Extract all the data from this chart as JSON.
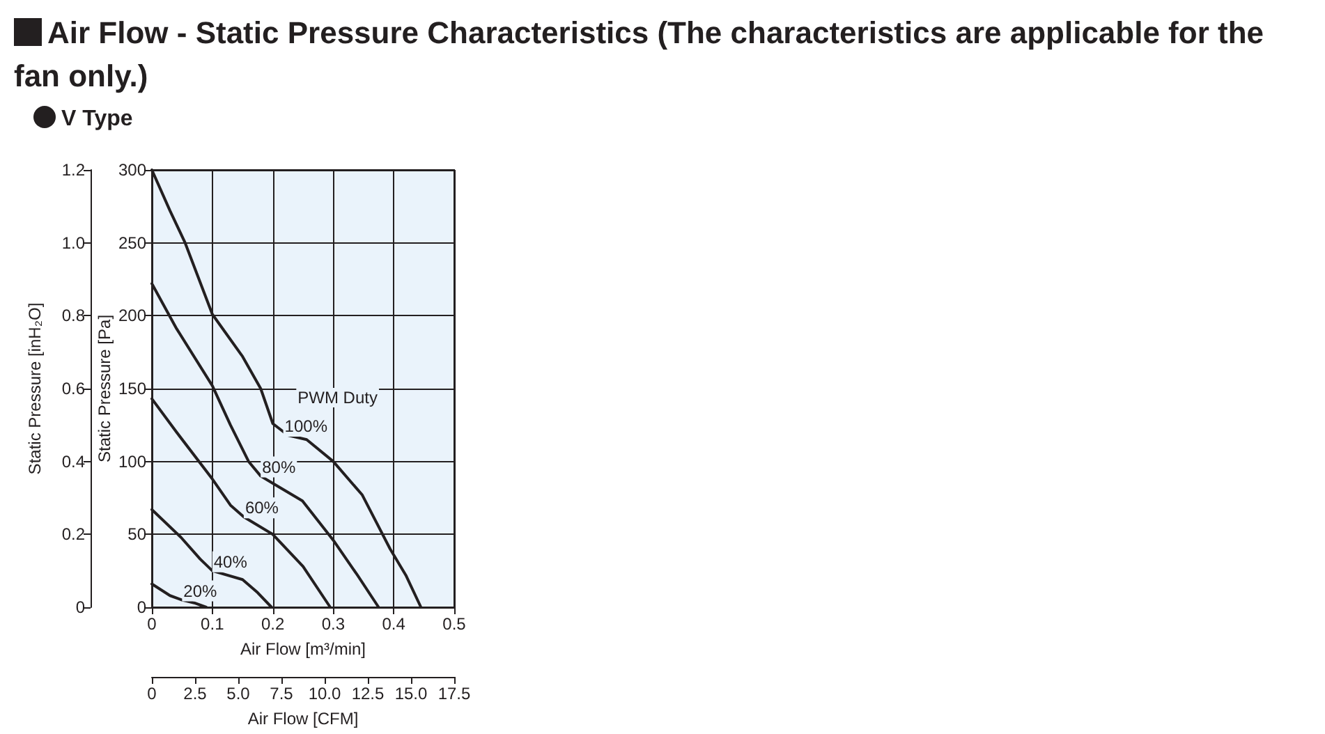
{
  "chart_data": {
    "type": "line",
    "title": "Air Flow - Static Pressure Characteristics (The characteristics are applicable for the fan only.)",
    "subtitle": "V Type",
    "xlabel": "Air Flow [m³/min]",
    "ylabel": "Static Pressure [Pa]",
    "y2label": "Static Pressure [inH₂O]",
    "x2label": "Air Flow [CFM]",
    "legend_title": "PWM Duty",
    "xlim": [
      0,
      0.5
    ],
    "xticks": [
      0,
      0.1,
      0.2,
      0.3,
      0.4,
      0.5
    ],
    "ylim": [
      0,
      300
    ],
    "yticks": [
      0,
      50,
      100,
      150,
      200,
      250,
      300
    ],
    "y2lim": [
      0,
      1.2
    ],
    "y2ticks": [
      0,
      0.2,
      0.4,
      0.6,
      0.8,
      {
        "value": 1,
        "label": "1.0"
      },
      1.2
    ],
    "x2lim": [
      0,
      17.5
    ],
    "x2ticks": [
      0,
      2.5,
      {
        "value": 5,
        "label": "5.0"
      },
      7.5,
      {
        "value": 10,
        "label": "10.0"
      },
      12.5,
      {
        "value": 15,
        "label": "15.0"
      },
      17.5
    ],
    "grid": true,
    "legend": false,
    "marker": "none",
    "line_style": "solid",
    "series": [
      {
        "name": "100%",
        "color": "#231f20",
        "x": [
          0,
          0.03,
          0.055,
          0.1,
          0.15,
          0.18,
          0.2,
          0.225,
          0.256,
          0.3,
          0.348,
          0.394,
          0.42,
          0.445
        ],
        "values": [
          300,
          272,
          250,
          201,
          172,
          150,
          126,
          118,
          115,
          100,
          77,
          40,
          22,
          0
        ]
      },
      {
        "name": "80%",
        "color": "#231f20",
        "x": [
          0,
          0.041,
          0.1,
          0.13,
          0.16,
          0.18,
          0.2,
          0.249,
          0.3,
          0.34,
          0.375
        ],
        "values": [
          222,
          191,
          152,
          125,
          100,
          90,
          85,
          73,
          46,
          22,
          0
        ]
      },
      {
        "name": "60%",
        "color": "#231f20",
        "x": [
          0,
          0.041,
          0.1,
          0.13,
          0.152,
          0.2,
          0.25,
          0.295
        ],
        "values": [
          143,
          120,
          88,
          70,
          62,
          50,
          28,
          0
        ]
      },
      {
        "name": "40%",
        "color": "#231f20",
        "x": [
          0,
          0.048,
          0.08,
          0.1,
          0.15,
          0.175,
          0.198
        ],
        "values": [
          67,
          48,
          33,
          25,
          19,
          10,
          0
        ]
      },
      {
        "name": "20%",
        "color": "#231f20",
        "x": [
          0,
          0.03,
          0.05,
          0.07,
          0.09
        ],
        "values": [
          16,
          8,
          5,
          3,
          0
        ]
      }
    ]
  }
}
